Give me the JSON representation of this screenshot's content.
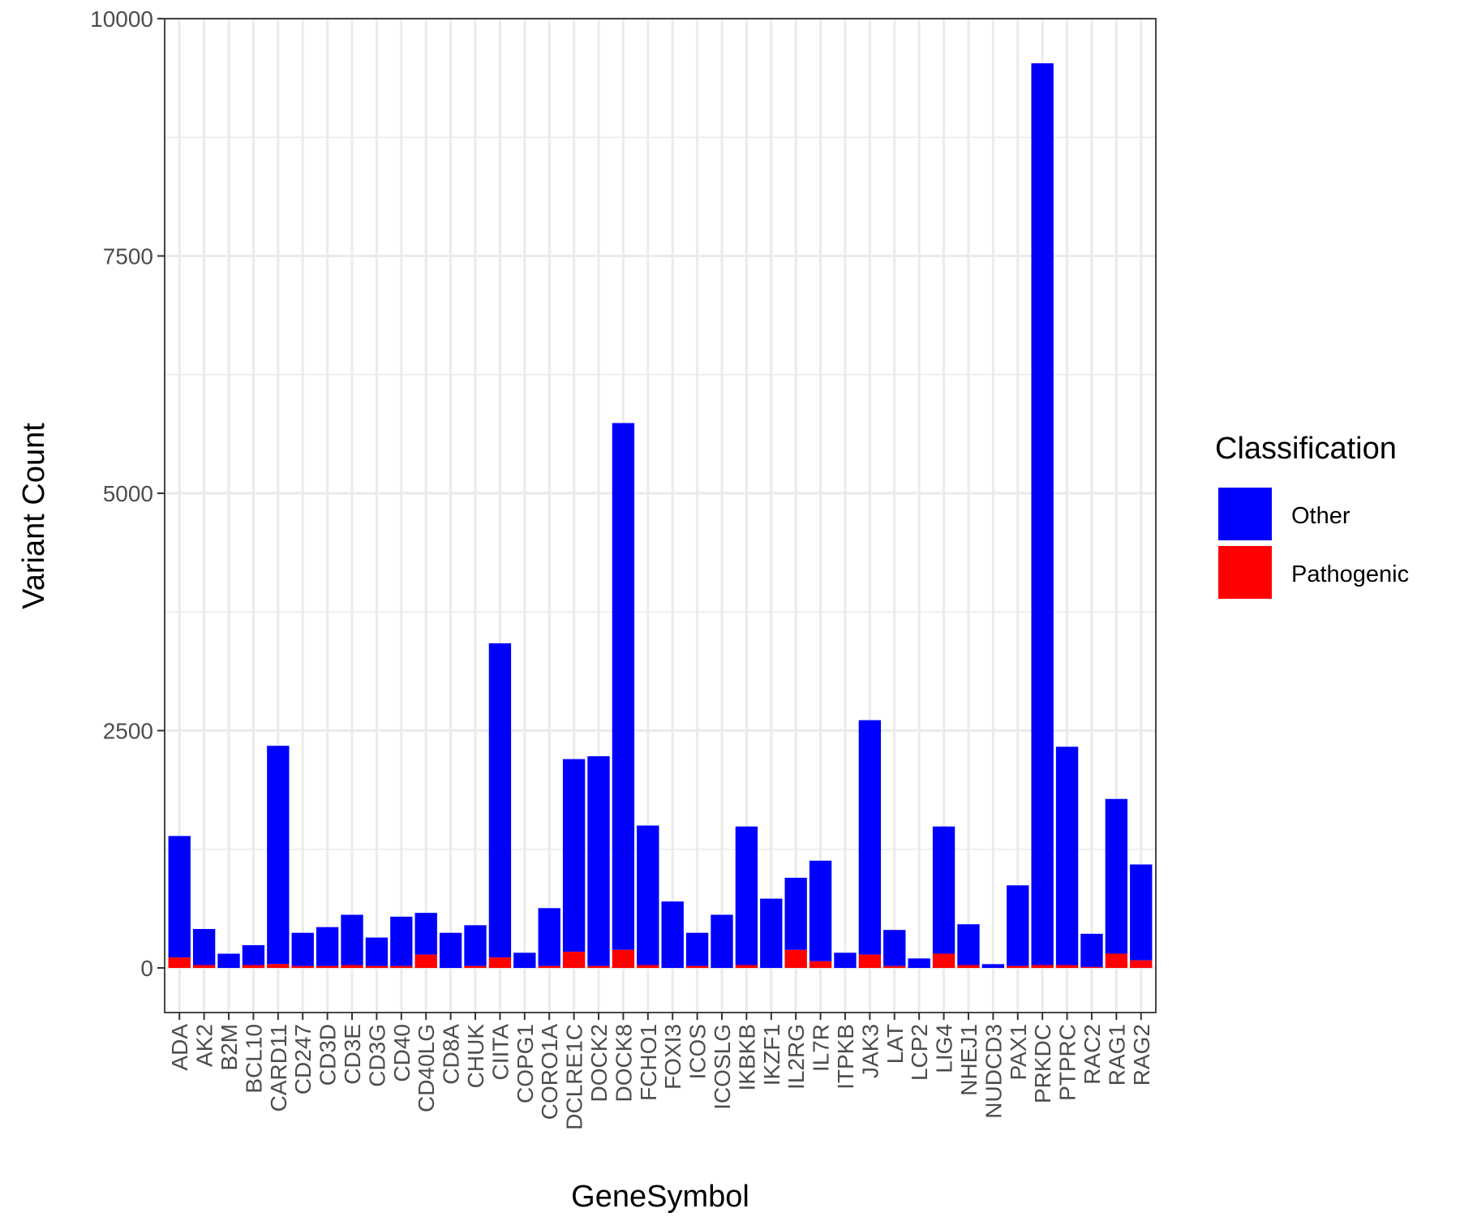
{
  "chart_data": {
    "type": "bar",
    "stacked": true,
    "xlabel": "GeneSymbol",
    "ylabel": "Variant Count",
    "ylim": [
      -470,
      10000
    ],
    "yticks": [
      0,
      2500,
      5000,
      7500,
      10000
    ],
    "grid": true,
    "legend_position": "right",
    "legend_title": "Classification",
    "categories": [
      "ADA",
      "AK2",
      "B2M",
      "BCL10",
      "CARD11",
      "CD247",
      "CD3D",
      "CD3E",
      "CD3G",
      "CD40",
      "CD40LG",
      "CD8A",
      "CHUK",
      "CIITA",
      "COPG1",
      "CORO1A",
      "DCLRE1C",
      "DOCK2",
      "DOCK8",
      "FCHO1",
      "FOXI3",
      "ICOS",
      "ICOSLG",
      "IKBKB",
      "IKZF1",
      "IL2RG",
      "IL7R",
      "ITPKB",
      "JAK3",
      "LAT",
      "LCP2",
      "LIG4",
      "NHEJ1",
      "NUDCD3",
      "PAX1",
      "PRKDC",
      "PTPRC",
      "RAC2",
      "RAG1",
      "RAG2"
    ],
    "series": [
      {
        "name": "Other",
        "color": "#0000ff",
        "values": [
          1280,
          380,
          150,
          210,
          2300,
          350,
          410,
          530,
          300,
          520,
          440,
          370,
          430,
          3310,
          160,
          610,
          2030,
          2210,
          5550,
          1470,
          700,
          350,
          560,
          1460,
          730,
          760,
          1060,
          160,
          2470,
          380,
          100,
          1340,
          430,
          40,
          850,
          9500,
          2300,
          350,
          1630,
          1010
        ]
      },
      {
        "name": "Pathogenic",
        "color": "#ff0000",
        "values": [
          110,
          30,
          0,
          30,
          40,
          20,
          20,
          30,
          20,
          20,
          140,
          0,
          20,
          110,
          0,
          20,
          170,
          20,
          190,
          30,
          0,
          20,
          0,
          30,
          0,
          190,
          70,
          0,
          140,
          20,
          0,
          150,
          30,
          0,
          20,
          30,
          30,
          10,
          150,
          80
        ]
      }
    ]
  }
}
